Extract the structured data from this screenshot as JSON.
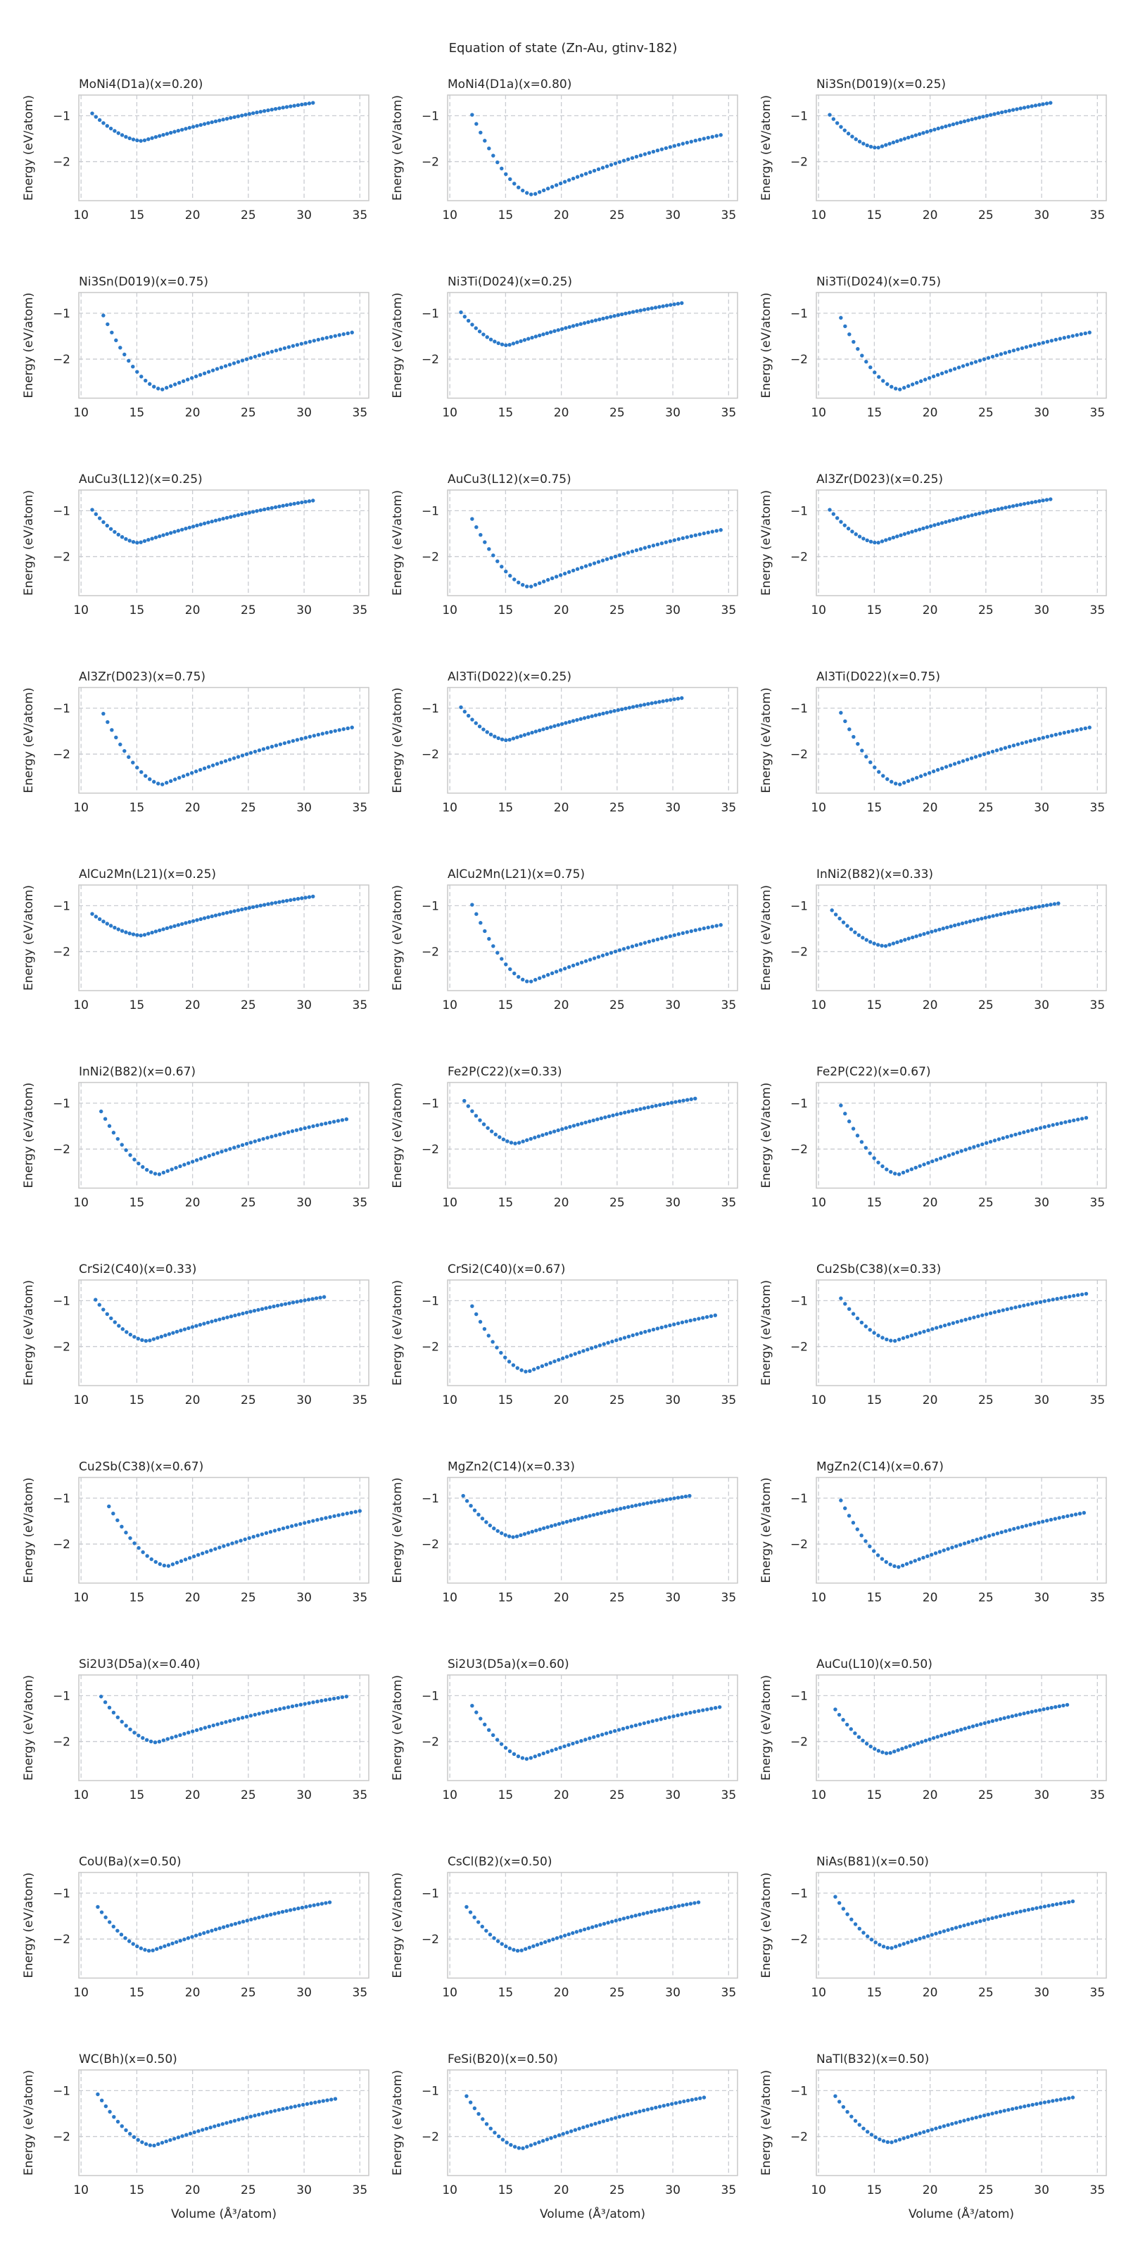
{
  "suptitle": "Equation of state (Zn-Au, gtinv-182)",
  "shared": {
    "ylabel": "Energy (eV/atom)",
    "xlabel": "Volume (Å³/atom)",
    "xticks": [
      10,
      15,
      20,
      25,
      30,
      35
    ],
    "yticks": [
      -1,
      -2
    ],
    "xlim": [
      9.8,
      35.8
    ],
    "ylim": [
      -2.85,
      -0.55
    ],
    "grid": true,
    "marker_color": "#2a79c9"
  },
  "chart_data": [
    {
      "type": "scatter",
      "title": "MoNi4(D1a)(x=0.20)",
      "curve": {
        "x_start": 11.0,
        "x_end": 30.8,
        "x_min": 15.5,
        "e_min": -1.55,
        "e_start": -0.95,
        "e_end": -0.72
      }
    },
    {
      "type": "scatter",
      "title": "MoNi4(D1a)(x=0.80)",
      "curve": {
        "x_start": 12.0,
        "x_end": 34.3,
        "x_min": 17.5,
        "e_min": -2.72,
        "e_start": -0.98,
        "e_end": -1.42
      }
    },
    {
      "type": "scatter",
      "title": "Ni3Sn(D019)(x=0.25)",
      "curve": {
        "x_start": 11.0,
        "x_end": 30.8,
        "x_min": 15.3,
        "e_min": -1.7,
        "e_start": -0.98,
        "e_end": -0.72
      }
    },
    {
      "type": "scatter",
      "title": "Ni3Sn(D019)(x=0.75)",
      "curve": {
        "x_start": 12.0,
        "x_end": 34.3,
        "x_min": 17.3,
        "e_min": -2.66,
        "e_start": -1.05,
        "e_end": -1.42
      }
    },
    {
      "type": "scatter",
      "title": "Ni3Ti(D024)(x=0.25)",
      "curve": {
        "x_start": 11.0,
        "x_end": 30.8,
        "x_min": 15.2,
        "e_min": -1.7,
        "e_start": -0.98,
        "e_end": -0.78
      }
    },
    {
      "type": "scatter",
      "title": "Ni3Ti(D024)(x=0.75)",
      "curve": {
        "x_start": 12.0,
        "x_end": 34.3,
        "x_min": 17.3,
        "e_min": -2.66,
        "e_start": -1.1,
        "e_end": -1.42
      }
    },
    {
      "type": "scatter",
      "title": "AuCu3(L12)(x=0.25)",
      "curve": {
        "x_start": 11.0,
        "x_end": 30.8,
        "x_min": 15.2,
        "e_min": -1.7,
        "e_start": -0.98,
        "e_end": -0.78
      }
    },
    {
      "type": "scatter",
      "title": "AuCu3(L12)(x=0.75)",
      "curve": {
        "x_start": 12.0,
        "x_end": 34.3,
        "x_min": 17.2,
        "e_min": -2.66,
        "e_start": -1.18,
        "e_end": -1.42
      }
    },
    {
      "type": "scatter",
      "title": "Al3Zr(D023)(x=0.25)",
      "curve": {
        "x_start": 11.0,
        "x_end": 30.8,
        "x_min": 15.3,
        "e_min": -1.7,
        "e_start": -0.98,
        "e_end": -0.75
      }
    },
    {
      "type": "scatter",
      "title": "Al3Zr(D023)(x=0.75)",
      "curve": {
        "x_start": 12.0,
        "x_end": 34.3,
        "x_min": 17.3,
        "e_min": -2.66,
        "e_start": -1.12,
        "e_end": -1.42
      }
    },
    {
      "type": "scatter",
      "title": "Al3Ti(D022)(x=0.25)",
      "curve": {
        "x_start": 11.0,
        "x_end": 30.8,
        "x_min": 15.2,
        "e_min": -1.7,
        "e_start": -0.98,
        "e_end": -0.78
      }
    },
    {
      "type": "scatter",
      "title": "Al3Ti(D022)(x=0.75)",
      "curve": {
        "x_start": 12.0,
        "x_end": 34.3,
        "x_min": 17.3,
        "e_min": -2.66,
        "e_start": -1.1,
        "e_end": -1.42
      }
    },
    {
      "type": "scatter",
      "title": "AlCu2Mn(L21)(x=0.25)",
      "curve": {
        "x_start": 11.0,
        "x_end": 30.8,
        "x_min": 15.5,
        "e_min": -1.65,
        "e_start": -1.18,
        "e_end": -0.8
      }
    },
    {
      "type": "scatter",
      "title": "AlCu2Mn(L21)(x=0.75)",
      "curve": {
        "x_start": 12.0,
        "x_end": 34.3,
        "x_min": 17.2,
        "e_min": -2.66,
        "e_start": -0.98,
        "e_end": -1.42
      }
    },
    {
      "type": "scatter",
      "title": "InNi2(B82)(x=0.33)",
      "curve": {
        "x_start": 11.2,
        "x_end": 31.5,
        "x_min": 16.0,
        "e_min": -1.88,
        "e_start": -1.1,
        "e_end": -0.95
      }
    },
    {
      "type": "scatter",
      "title": "InNi2(B82)(x=0.67)",
      "curve": {
        "x_start": 11.8,
        "x_end": 33.8,
        "x_min": 17.0,
        "e_min": -2.55,
        "e_start": -1.18,
        "e_end": -1.35
      }
    },
    {
      "type": "scatter",
      "title": "Fe2P(C22)(x=0.33)",
      "curve": {
        "x_start": 11.3,
        "x_end": 32.0,
        "x_min": 16.0,
        "e_min": -1.88,
        "e_start": -0.95,
        "e_end": -0.9
      }
    },
    {
      "type": "scatter",
      "title": "Fe2P(C22)(x=0.67)",
      "curve": {
        "x_start": 12.0,
        "x_end": 34.0,
        "x_min": 17.2,
        "e_min": -2.55,
        "e_start": -1.05,
        "e_end": -1.32
      }
    },
    {
      "type": "scatter",
      "title": "CrSi2(C40)(x=0.33)",
      "curve": {
        "x_start": 11.3,
        "x_end": 31.8,
        "x_min": 16.0,
        "e_min": -1.88,
        "e_start": -0.98,
        "e_end": -0.92
      }
    },
    {
      "type": "scatter",
      "title": "CrSi2(C40)(x=0.67)",
      "curve": {
        "x_start": 12.0,
        "x_end": 33.8,
        "x_min": 17.0,
        "e_min": -2.55,
        "e_start": -1.12,
        "e_end": -1.32
      }
    },
    {
      "type": "scatter",
      "title": "Cu2Sb(C38)(x=0.33)",
      "curve": {
        "x_start": 12.0,
        "x_end": 34.0,
        "x_min": 16.8,
        "e_min": -1.88,
        "e_start": -0.95,
        "e_end": -0.85
      }
    },
    {
      "type": "scatter",
      "title": "Cu2Sb(C38)(x=0.67)",
      "curve": {
        "x_start": 12.5,
        "x_end": 35.0,
        "x_min": 17.8,
        "e_min": -2.48,
        "e_start": -1.18,
        "e_end": -1.28
      }
    },
    {
      "type": "scatter",
      "title": "MgZn2(C14)(x=0.33)",
      "curve": {
        "x_start": 11.2,
        "x_end": 31.5,
        "x_min": 15.8,
        "e_min": -1.85,
        "e_start": -0.95,
        "e_end": -0.95
      }
    },
    {
      "type": "scatter",
      "title": "MgZn2(C14)(x=0.67)",
      "curve": {
        "x_start": 12.0,
        "x_end": 33.8,
        "x_min": 17.2,
        "e_min": -2.5,
        "e_start": -1.05,
        "e_end": -1.32
      }
    },
    {
      "type": "scatter",
      "title": "Si2U3(D5a)(x=0.40)",
      "curve": {
        "x_start": 11.8,
        "x_end": 33.8,
        "x_min": 16.8,
        "e_min": -2.02,
        "e_start": -1.02,
        "e_end": -1.02
      }
    },
    {
      "type": "scatter",
      "title": "Si2U3(D5a)(x=0.60)",
      "curve": {
        "x_start": 12.0,
        "x_end": 34.2,
        "x_min": 17.0,
        "e_min": -2.38,
        "e_start": -1.22,
        "e_end": -1.25
      }
    },
    {
      "type": "scatter",
      "title": "AuCu(L10)(x=0.50)",
      "curve": {
        "x_start": 11.5,
        "x_end": 32.3,
        "x_min": 16.3,
        "e_min": -2.26,
        "e_start": -1.3,
        "e_end": -1.2
      }
    },
    {
      "type": "scatter",
      "title": "CoU(Ba)(x=0.50)",
      "curve": {
        "x_start": 11.5,
        "x_end": 32.3,
        "x_min": 16.3,
        "e_min": -2.26,
        "e_start": -1.3,
        "e_end": -1.2
      }
    },
    {
      "type": "scatter",
      "title": "CsCl(B2)(x=0.50)",
      "curve": {
        "x_start": 11.5,
        "x_end": 32.3,
        "x_min": 16.3,
        "e_min": -2.26,
        "e_start": -1.3,
        "e_end": -1.2
      }
    },
    {
      "type": "scatter",
      "title": "NiAs(B81)(x=0.50)",
      "curve": {
        "x_start": 11.5,
        "x_end": 32.8,
        "x_min": 16.5,
        "e_min": -2.2,
        "e_start": -1.08,
        "e_end": -1.18
      }
    },
    {
      "type": "scatter",
      "title": "WC(Bh)(x=0.50)",
      "curve": {
        "x_start": 11.5,
        "x_end": 32.8,
        "x_min": 16.5,
        "e_min": -2.2,
        "e_start": -1.08,
        "e_end": -1.18
      }
    },
    {
      "type": "scatter",
      "title": "FeSi(B20)(x=0.50)",
      "curve": {
        "x_start": 11.5,
        "x_end": 32.8,
        "x_min": 16.5,
        "e_min": -2.26,
        "e_start": -1.12,
        "e_end": -1.15
      }
    },
    {
      "type": "scatter",
      "title": "NaTl(B32)(x=0.50)",
      "curve": {
        "x_start": 11.5,
        "x_end": 32.8,
        "x_min": 16.5,
        "e_min": -2.13,
        "e_start": -1.12,
        "e_end": -1.15
      }
    }
  ]
}
